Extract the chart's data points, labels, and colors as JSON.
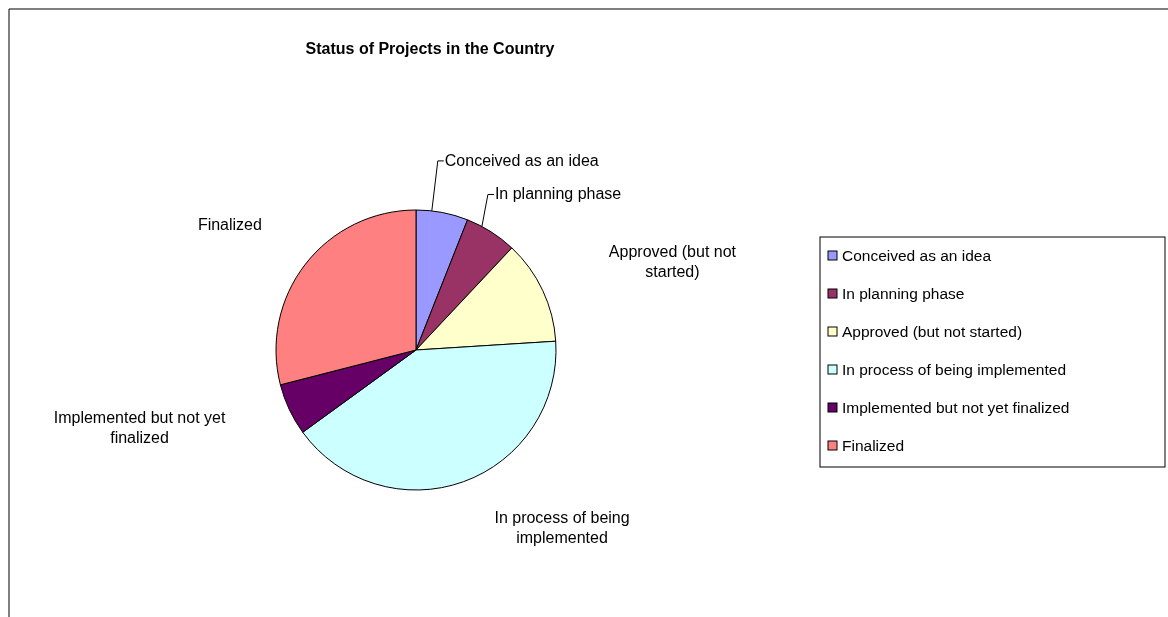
{
  "chart_data": {
    "type": "pie",
    "title": "Status of Projects in the Country",
    "categories": [
      "Conceived as an idea",
      "In planning phase",
      "Approved (but not started)",
      "In process of being implemented",
      "Implemented but not yet finalized",
      "Finalized"
    ],
    "values": [
      6,
      6,
      12,
      41,
      6,
      29
    ],
    "colors": [
      "#9999ff",
      "#993366",
      "#ffffcc",
      "#ccffff",
      "#660066",
      "#ff8080"
    ],
    "legend": "right"
  }
}
